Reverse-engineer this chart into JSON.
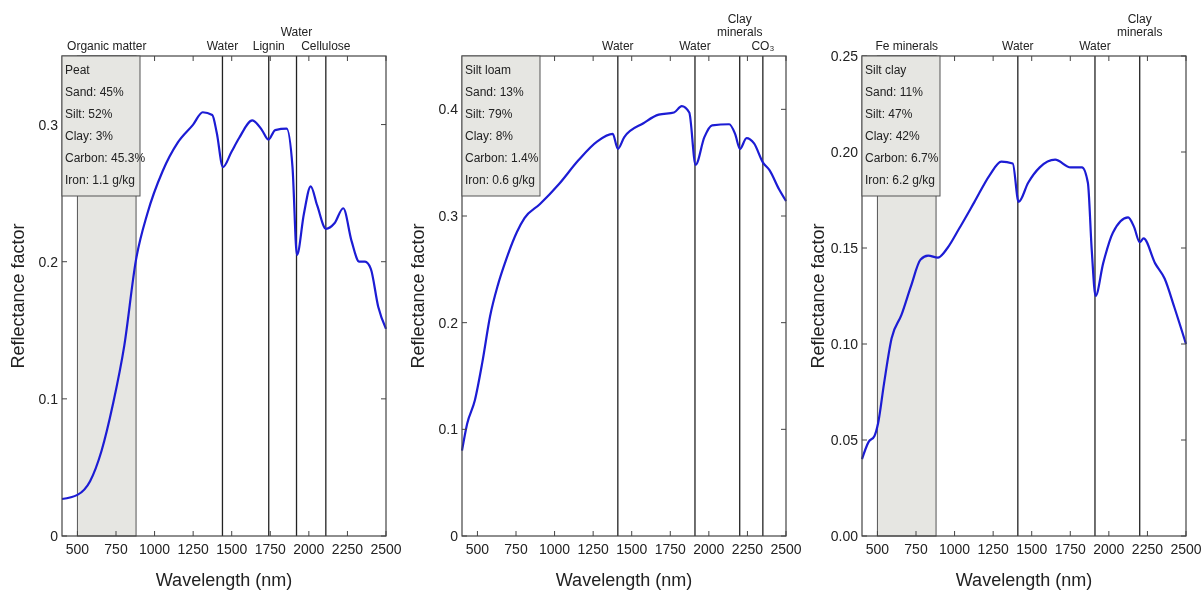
{
  "chart_data": [
    {
      "type": "line",
      "xlabel": "Wavelength (nm)",
      "ylabel": "Reflectance factor",
      "xlim": [
        400,
        2500
      ],
      "ylim": [
        0,
        0.35
      ],
      "xticks": [
        500,
        750,
        1000,
        1250,
        1500,
        1750,
        2000,
        2250,
        2500
      ],
      "yticks": [
        0,
        0.1,
        0.2,
        0.3
      ],
      "series": [
        {
          "color": "#1c1cd4",
          "x": [
            400,
            500,
            582,
            656,
            730,
            804,
            879,
            953,
            1052,
            1151,
            1250,
            1312,
            1374,
            1403,
            1443,
            1498,
            1547,
            1634,
            1696,
            1738,
            1782,
            1856,
            1894,
            1923,
            1968,
            2012,
            2054,
            2111,
            2166,
            2223,
            2277,
            2327,
            2364,
            2401,
            2450,
            2500
          ],
          "values": [
            0.027,
            0.03,
            0.04,
            0.062,
            0.096,
            0.139,
            0.201,
            0.235,
            0.266,
            0.287,
            0.3,
            0.309,
            0.307,
            0.294,
            0.269,
            0.28,
            0.29,
            0.303,
            0.296,
            0.289,
            0.296,
            0.297,
            0.269,
            0.205,
            0.235,
            0.255,
            0.241,
            0.224,
            0.228,
            0.239,
            0.215,
            0.2,
            0.2,
            0.195,
            0.167,
            0.151
          ]
        }
      ],
      "bands": [
        {
          "axis": "x",
          "from": 500,
          "to": 880,
          "label": "Organic matter",
          "color": "#e6e6e2"
        }
      ],
      "ref_lines": [
        {
          "axis": "x",
          "value": 1440,
          "label": "Water"
        },
        {
          "axis": "x",
          "value": 1740,
          "label": "Lignin"
        },
        {
          "axis": "x",
          "value": 1920,
          "label": "Water"
        },
        {
          "axis": "x",
          "value": 2110,
          "label": "Cellulose"
        }
      ],
      "annotations": [
        "Peat",
        "Sand: 45%",
        "Silt: 52%",
        "Clay: 3%",
        "Carbon: 45.3%",
        "Iron: 1.1 g/kg"
      ]
    },
    {
      "type": "line",
      "xlabel": "Wavelength (nm)",
      "ylabel": "Reflectance factor",
      "xlim": [
        400,
        2500
      ],
      "ylim": [
        0,
        0.45
      ],
      "xticks": [
        500,
        750,
        1000,
        1250,
        1500,
        1750,
        2000,
        2250,
        2500
      ],
      "yticks": [
        0,
        0.1,
        0.2,
        0.3,
        0.4
      ],
      "series": [
        {
          "color": "#1c1cd4",
          "x": [
            400,
            433,
            483,
            532,
            582,
            632,
            681,
            756,
            805,
            904,
            1029,
            1153,
            1277,
            1377,
            1410,
            1452,
            1576,
            1675,
            1774,
            1824,
            1873,
            1914,
            1971,
            2021,
            2132,
            2170,
            2202,
            2244,
            2293,
            2351,
            2393,
            2455,
            2500
          ],
          "values": [
            0.08,
            0.105,
            0.127,
            0.163,
            0.206,
            0.235,
            0.257,
            0.285,
            0.298,
            0.311,
            0.33,
            0.352,
            0.37,
            0.377,
            0.363,
            0.374,
            0.387,
            0.395,
            0.397,
            0.403,
            0.397,
            0.348,
            0.374,
            0.385,
            0.386,
            0.377,
            0.363,
            0.373,
            0.368,
            0.35,
            0.343,
            0.325,
            0.314
          ]
        }
      ],
      "ref_lines": [
        {
          "axis": "x",
          "value": 1410,
          "label": "Water"
        },
        {
          "axis": "x",
          "value": 1910,
          "label": "Water"
        },
        {
          "axis": "x",
          "value": 2200,
          "label": "Clay\nminerals"
        },
        {
          "axis": "x",
          "value": 2350,
          "label": "CO₃"
        }
      ],
      "annotations": [
        "Silt loam",
        "Sand: 13%",
        "Silt: 79%",
        "Clay: 8%",
        "Carbon: 1.4%",
        "Iron: 0.6 g/kg"
      ]
    },
    {
      "type": "line",
      "xlabel": "Wavelength (nm)",
      "ylabel": "Reflectance factor",
      "xlim": [
        400,
        2500
      ],
      "ylim": [
        0,
        0.25
      ],
      "xticks": [
        500,
        750,
        1000,
        1250,
        1500,
        1750,
        2000,
        2250,
        2500
      ],
      "yticks": [
        {
          "value": 0,
          "label": "0.00"
        },
        {
          "value": 0.05,
          "label": "0.05"
        },
        {
          "value": 0.1,
          "label": "0.10"
        },
        {
          "value": 0.15,
          "label": "0.15"
        },
        {
          "value": 0.2,
          "label": "0.20"
        },
        {
          "value": 0.25,
          "label": "0.25"
        }
      ],
      "series": [
        {
          "color": "#1c1cd4",
          "x": [
            400,
            443,
            480,
            505,
            542,
            592,
            655,
            717,
            780,
            829,
            892,
            954,
            1029,
            1129,
            1228,
            1303,
            1377,
            1415,
            1477,
            1552,
            1652,
            1752,
            1826,
            1864,
            1889,
            1914,
            1963,
            2026,
            2125,
            2163,
            2200,
            2225,
            2300,
            2362,
            2425,
            2500
          ],
          "values": [
            0.04,
            0.049,
            0.052,
            0.059,
            0.079,
            0.103,
            0.115,
            0.13,
            0.144,
            0.146,
            0.145,
            0.15,
            0.16,
            0.174,
            0.188,
            0.195,
            0.194,
            0.174,
            0.184,
            0.192,
            0.196,
            0.192,
            0.192,
            0.184,
            0.149,
            0.125,
            0.142,
            0.158,
            0.166,
            0.161,
            0.153,
            0.155,
            0.142,
            0.134,
            0.119,
            0.1
          ]
        }
      ],
      "bands": [
        {
          "axis": "x",
          "from": 500,
          "to": 880,
          "label": "Fe minerals",
          "color": "#e6e6e2"
        }
      ],
      "ref_lines": [
        {
          "axis": "x",
          "value": 1410,
          "label": "Water"
        },
        {
          "axis": "x",
          "value": 1910,
          "label": "Water"
        },
        {
          "axis": "x",
          "value": 2200,
          "label": "Clay\nminerals"
        }
      ],
      "annotations": [
        "Silt clay",
        "Sand: 11%",
        "Silt: 47%",
        "Clay: 42%",
        "Carbon: 6.7%",
        "Iron: 6.2 g/kg"
      ]
    }
  ]
}
